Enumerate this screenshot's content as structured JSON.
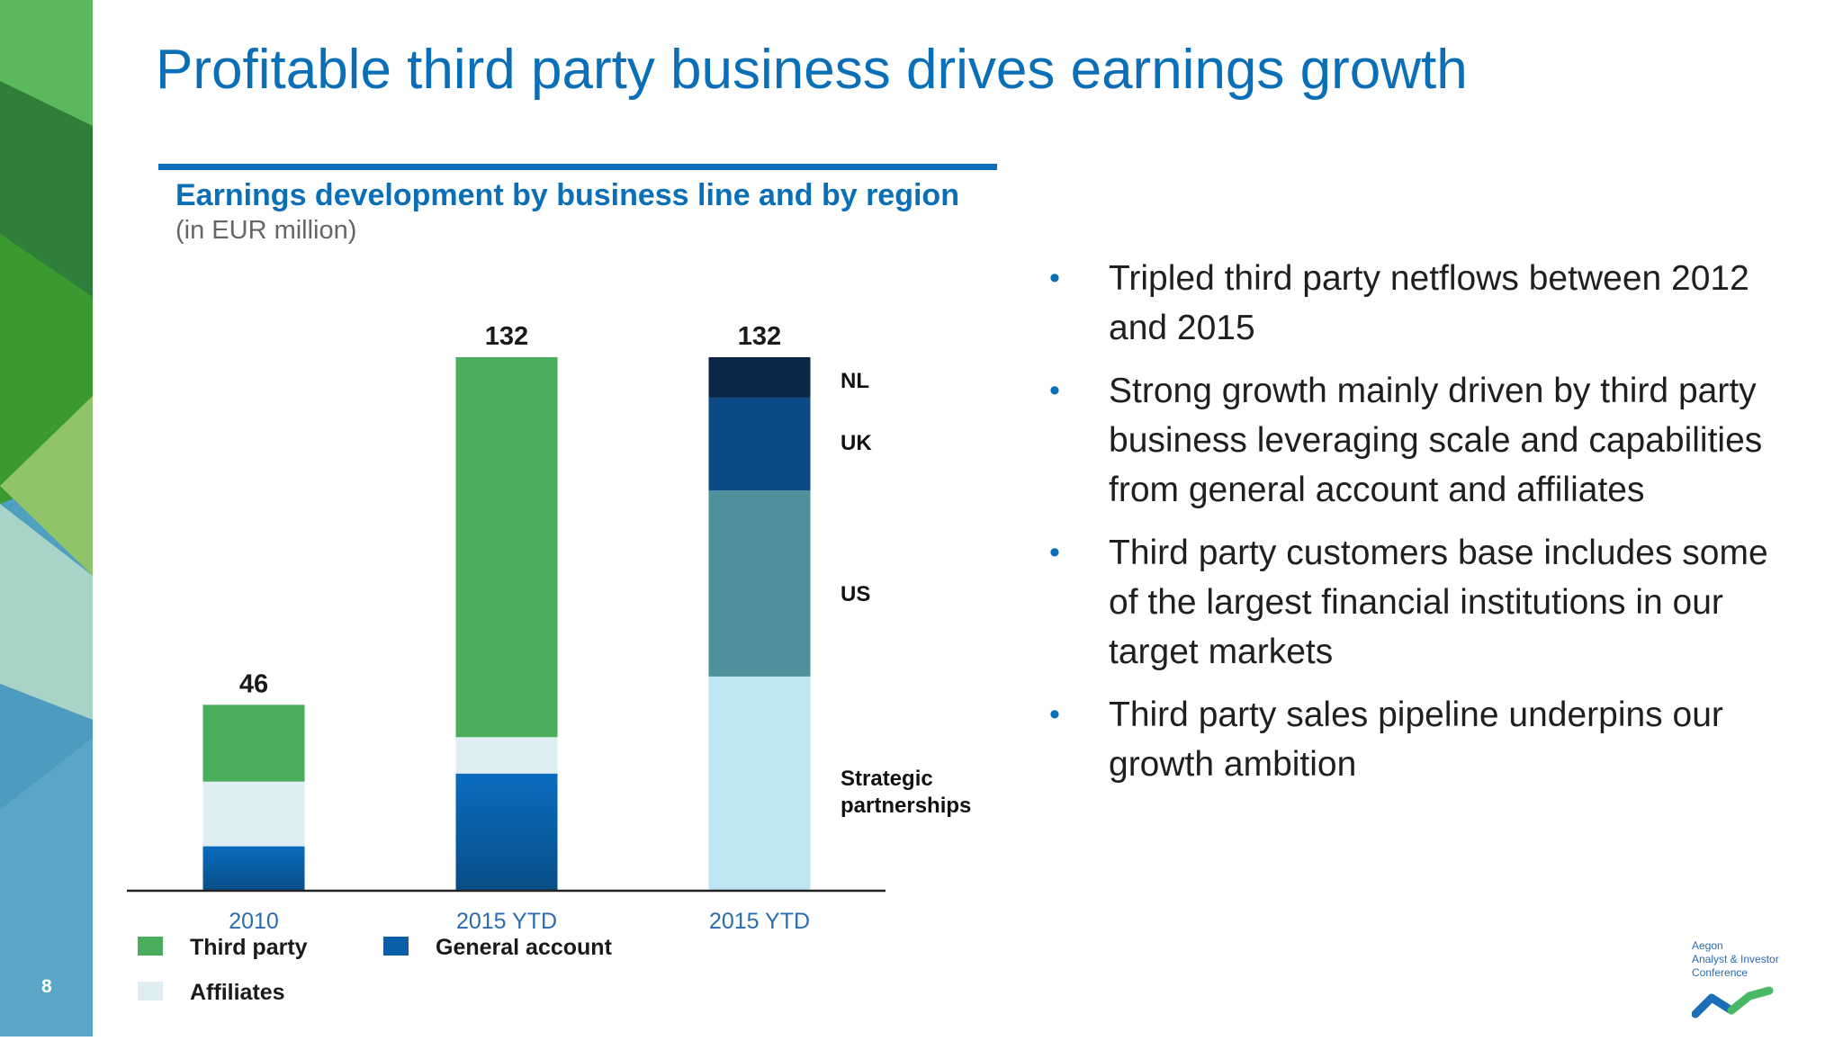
{
  "slide": {
    "title": "Profitable third party business drives earnings growth",
    "page_number": "8"
  },
  "chart_data": {
    "type": "bar",
    "stacked": true,
    "title": "Earnings development by business line and by region",
    "subtitle": "(in EUR million)",
    "categories": [
      "2010",
      "2015 YTD",
      "2015 YTD"
    ],
    "totals": [
      46,
      132,
      132
    ],
    "series": [
      {
        "name": "General account",
        "key": "general_account",
        "color": "#0a5fa6",
        "values": [
          11,
          29,
          null
        ]
      },
      {
        "name": "Affiliates",
        "key": "affiliates",
        "color": "#dfeef2",
        "values": [
          16,
          9,
          null
        ]
      },
      {
        "name": "Third party",
        "key": "third_party",
        "color": "#4aad5b",
        "values": [
          19,
          94,
          null
        ]
      },
      {
        "name": "Strategic partnerships",
        "key": "strategic_partnerships",
        "color": "#bde6f2",
        "values": [
          null,
          null,
          53
        ]
      },
      {
        "name": "US",
        "key": "us",
        "color": "#4f919a",
        "values": [
          null,
          null,
          46
        ]
      },
      {
        "name": "UK",
        "key": "uk",
        "color": "#0b4a85",
        "values": [
          null,
          null,
          23
        ]
      },
      {
        "name": "NL",
        "key": "nl",
        "color": "#0a2747",
        "values": [
          null,
          null,
          10
        ]
      }
    ],
    "segment_labels": [
      {
        "key": "nl",
        "text": "NL"
      },
      {
        "key": "uk",
        "text": "UK"
      },
      {
        "key": "us",
        "text": "US"
      },
      {
        "key": "strategic_partnerships",
        "text": "Strategic\npartnerships"
      }
    ],
    "legend": [
      {
        "label": "Third party",
        "color": "#4aad5b"
      },
      {
        "label": "General account",
        "color": "#0a5fa6"
      },
      {
        "label": "Affiliates",
        "color": "#dfeef2"
      }
    ],
    "ylim": [
      0,
      132
    ],
    "grid": false,
    "legend_position": "bottom-left"
  },
  "bullets": [
    "Tripled third party netflows between 2012 and 2015",
    "Strong growth mainly driven by third party business leveraging scale and capabilities from general account and affiliates",
    "Third party customers base includes some of the largest financial institutions in our target markets",
    "Third party sales pipeline underpins our growth ambition"
  ],
  "bullet_marker": "•",
  "logo": {
    "text": "Aegon\nAnalyst & Investor\nConference",
    "accent_colors": [
      "#1b6db5",
      "#47b865"
    ]
  },
  "colors": {
    "accent_blue": "#0b6fb8",
    "axis": "#222222",
    "category_label": "#2a6bb0"
  }
}
